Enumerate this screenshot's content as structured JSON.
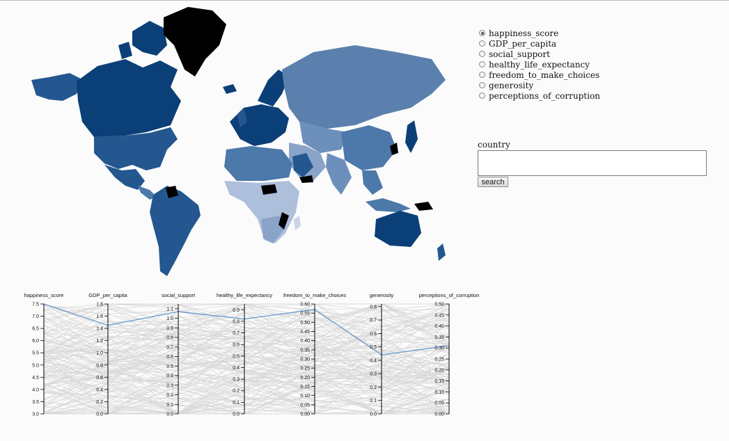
{
  "radio_group": {
    "selected": "happiness_score",
    "options": [
      "happiness_score",
      "GDP_per_capita",
      "social_support",
      "healthy_life_expectancy",
      "freedom_to_make_choices",
      "generosity",
      "perceptions_of_corruption"
    ]
  },
  "search": {
    "label": "country",
    "value": "",
    "button": "search"
  },
  "colors": {
    "background": "#fbfbfb",
    "gray_lines": "#d7d7d7",
    "highlight": "#6f9ccb",
    "map_dark": "#0b3f78",
    "map_mid": "#4c78aa",
    "map_light": "#b9c7e0",
    "map_black": "#000000"
  },
  "chart_data": {
    "type": "parallel-coordinates",
    "axes": [
      {
        "name": "happiness_score",
        "range": [
          3.0,
          7.5
        ],
        "ticks": [
          "3.0",
          "3.5",
          "4.0",
          "4.5",
          "5.0",
          "5.5",
          "6.0",
          "6.5",
          "7.0",
          "7.5"
        ]
      },
      {
        "name": "GDP_per_capita",
        "range": [
          0,
          1.8
        ],
        "ticks": [
          "0.0",
          "0.2",
          "0.4",
          "0.6",
          "0.8",
          "1.0",
          "1.2",
          "1.4",
          "1.6",
          "1.8"
        ]
      },
      {
        "name": "social_support",
        "range": [
          0,
          1.15
        ],
        "ticks": [
          "0.0",
          "0.1",
          "0.2",
          "0.3",
          "0.4",
          "0.5",
          "0.6",
          "0.7",
          "0.8",
          "0.9",
          "1.0",
          "1.1"
        ]
      },
      {
        "name": "healthy_life_expectancy",
        "range": [
          0,
          0.95
        ],
        "ticks": [
          "0.0",
          "0.1",
          "0.2",
          "0.3",
          "0.4",
          "0.5",
          "0.6",
          "0.7",
          "0.8",
          "0.9"
        ]
      },
      {
        "name": "freedom_to_make_choices",
        "range": [
          0,
          0.6
        ],
        "ticks": [
          "0.00",
          "0.05",
          "0.10",
          "0.15",
          "0.20",
          "0.25",
          "0.30",
          "0.35",
          "0.40",
          "0.45",
          "0.50",
          "0.55",
          "0.60"
        ]
      },
      {
        "name": "generosity",
        "range": [
          0,
          0.82
        ],
        "ticks": [
          "0.0",
          "0.1",
          "0.2",
          "0.3",
          "0.4",
          "0.5",
          "0.6",
          "0.7",
          "0.8"
        ]
      },
      {
        "name": "perceptions_of_corruption",
        "range": [
          0,
          0.5
        ],
        "ticks": [
          "0.00",
          "0.05",
          "0.10",
          "0.15",
          "0.20",
          "0.25",
          "0.30",
          "0.35",
          "0.40",
          "0.45",
          "0.50"
        ]
      }
    ],
    "highlighted": [
      7.5,
      1.45,
      1.07,
      0.82,
      0.57,
      0.44,
      0.31
    ]
  }
}
